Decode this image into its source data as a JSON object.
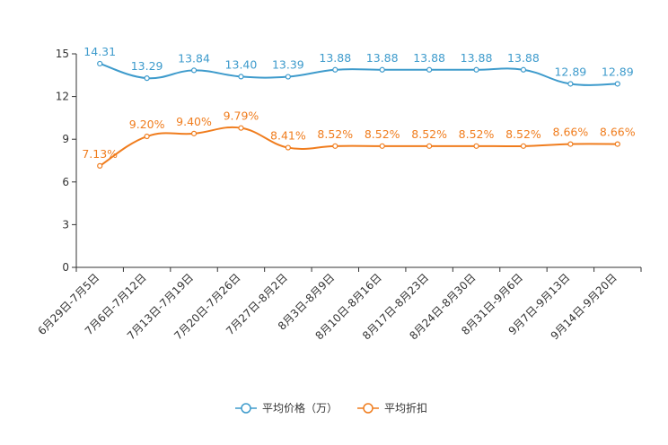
{
  "chart_data": {
    "type": "line",
    "title": "",
    "xlabel": "",
    "ylabel": "",
    "ylim": [
      0,
      15
    ],
    "yticks": [
      0,
      3,
      6,
      9,
      12,
      15
    ],
    "grid": false,
    "smooth": true,
    "legend_position": "bottom-center",
    "categories": [
      "6月29日-7月5日",
      "7月6日-7月12日",
      "7月13日-7月19日",
      "7月20日-7月26日",
      "7月27日-8月2日",
      "8月3日-8月9日",
      "8月10日-8月16日",
      "8月17日-8月23日",
      "8月24日-8月30日",
      "8月31日-9月6日",
      "9月7日-9月13日",
      "9月14日-9月20日"
    ],
    "series": [
      {
        "name": "平均价格（万）",
        "color": "#3E9BCC",
        "values": [
          14.31,
          13.29,
          13.84,
          13.4,
          13.39,
          13.88,
          13.88,
          13.88,
          13.88,
          13.88,
          12.89,
          12.89
        ],
        "labels": [
          "14.31",
          "13.29",
          "13.84",
          "13.40",
          "13.39",
          "13.88",
          "13.88",
          "13.88",
          "13.88",
          "13.88",
          "12.89",
          "12.89"
        ]
      },
      {
        "name": "平均折扣",
        "color": "#F07D1E",
        "values": [
          7.13,
          9.2,
          9.4,
          9.79,
          8.41,
          8.52,
          8.52,
          8.52,
          8.52,
          8.52,
          8.66,
          8.66
        ],
        "labels": [
          "7.13%",
          "9.20%",
          "9.40%",
          "9.79%",
          "8.41%",
          "8.52%",
          "8.52%",
          "8.52%",
          "8.52%",
          "8.52%",
          "8.66%",
          "8.66%"
        ]
      }
    ]
  }
}
